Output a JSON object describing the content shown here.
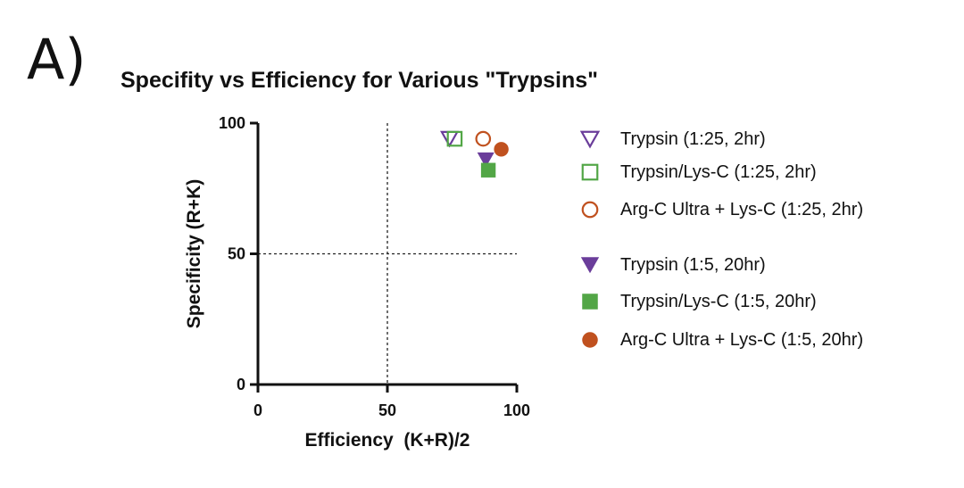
{
  "panel_label": "A)",
  "chart_data": {
    "type": "scatter",
    "title": "Specifity vs Efficiency for Various \"Trypsins\"",
    "xlabel": "Efficiency  (K+R)/2",
    "ylabel": "Specificity (R+K)",
    "xlim": [
      0,
      100
    ],
    "ylim": [
      0,
      100
    ],
    "xticks": [
      0,
      50,
      100
    ],
    "yticks": [
      0,
      50,
      100
    ],
    "reference_lines": {
      "x": 50,
      "y": 50,
      "style": "dotted"
    },
    "grid": false,
    "legend_position": "right",
    "series": [
      {
        "name": "Trypsin (1:25, 2hr)",
        "marker": "triangle-down",
        "filled": false,
        "color": "#6a3d9a",
        "points": [
          {
            "x": 74,
            "y": 94
          }
        ]
      },
      {
        "name": "Trypsin/Lys-C (1:25, 2hr)",
        "marker": "square",
        "filled": false,
        "color": "#52a646",
        "points": [
          {
            "x": 76,
            "y": 94
          }
        ]
      },
      {
        "name": "Arg-C Ultra + Lys-C (1:25, 2hr)",
        "marker": "circle",
        "filled": false,
        "color": "#c0511f",
        "points": [
          {
            "x": 87,
            "y": 94
          }
        ]
      },
      {
        "name": "Trypsin (1:5, 20hr)",
        "marker": "triangle-down",
        "filled": true,
        "color": "#6a3d9a",
        "points": [
          {
            "x": 88,
            "y": 86
          }
        ]
      },
      {
        "name": "Trypsin/Lys-C (1:5, 20hr)",
        "marker": "square",
        "filled": true,
        "color": "#52a646",
        "points": [
          {
            "x": 89,
            "y": 82
          }
        ]
      },
      {
        "name": "Arg-C Ultra + Lys-C (1:5, 20hr)",
        "marker": "circle",
        "filled": true,
        "color": "#c0511f",
        "points": [
          {
            "x": 94,
            "y": 90
          }
        ]
      }
    ]
  }
}
